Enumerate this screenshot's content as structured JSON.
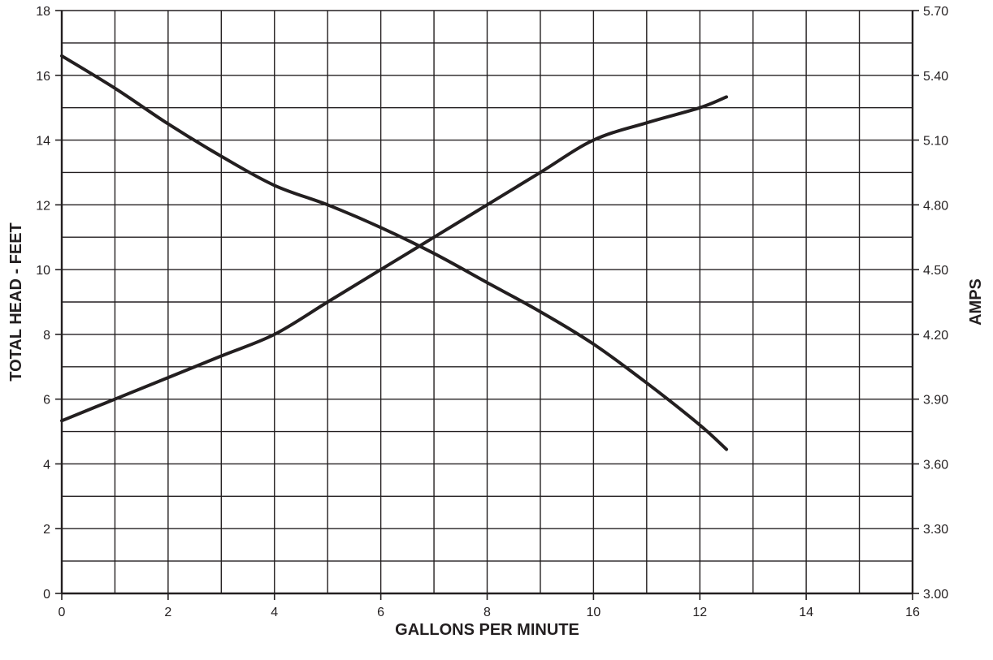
{
  "chart_data": {
    "type": "line",
    "title": "",
    "xlabel": "GALLONS PER MINUTE",
    "ylabel": "TOTAL HEAD - FEET",
    "y2label": "AMPS",
    "xlim": [
      0,
      16
    ],
    "ylim": [
      0,
      18
    ],
    "y2lim": [
      3.0,
      5.7
    ],
    "x_ticks": [
      "0",
      "2",
      "4",
      "6",
      "8",
      "10",
      "12",
      "14",
      "16"
    ],
    "y_ticks": [
      "0",
      "2",
      "4",
      "6",
      "8",
      "10",
      "12",
      "14",
      "16",
      "18"
    ],
    "y2_ticks": [
      "3.00",
      "3.30",
      "3.60",
      "3.90",
      "4.20",
      "4.50",
      "4.80",
      "5.10",
      "5.40",
      "5.70"
    ],
    "grid": true,
    "legend": "none",
    "series": [
      {
        "axis": "left",
        "color": "#231f20",
        "x": [
          0,
          1,
          2,
          3,
          4,
          5,
          6,
          7,
          8,
          9,
          10,
          11,
          12,
          12.5
        ],
        "y": [
          16.6,
          15.6,
          14.5,
          13.5,
          12.6,
          12.0,
          11.3,
          10.5,
          9.6,
          8.7,
          7.7,
          6.5,
          5.2,
          4.45
        ]
      },
      {
        "axis": "right",
        "color": "#231f20",
        "x": [
          0,
          1,
          2,
          3,
          4,
          5,
          6,
          7,
          8,
          9,
          10,
          11,
          12,
          12.5
        ],
        "y": [
          3.8,
          3.9,
          4.0,
          4.1,
          4.2,
          4.35,
          4.5,
          4.65,
          4.8,
          4.95,
          5.1,
          5.18,
          5.25,
          5.3
        ]
      }
    ]
  }
}
